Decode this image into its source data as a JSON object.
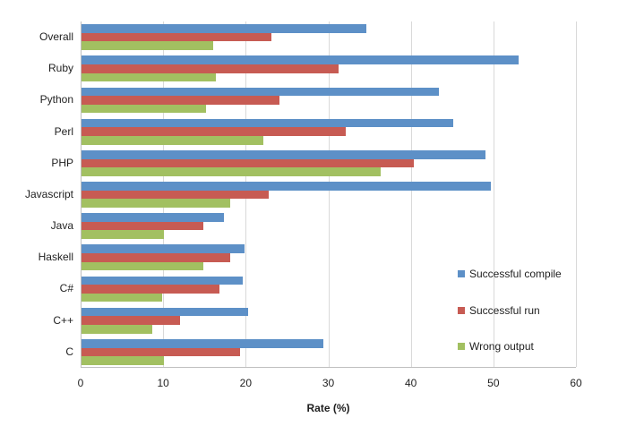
{
  "chart_data": {
    "type": "bar",
    "orientation": "horizontal",
    "title": "",
    "xlabel": "Rate (%)",
    "ylabel": "",
    "xlim": [
      0,
      60
    ],
    "xticks": [
      0,
      10,
      20,
      30,
      40,
      50,
      60
    ],
    "grid": true,
    "legend_position": "inside-right",
    "categories": [
      "Overall",
      "Ruby",
      "Python",
      "Perl",
      "PHP",
      "Javascript",
      "Java",
      "Haskell",
      "C#",
      "C++",
      "C"
    ],
    "series": [
      {
        "name": "Successful compile",
        "color": "#5d90c7",
        "values": [
          34.5,
          53.0,
          43.3,
          45.0,
          48.9,
          49.6,
          17.3,
          19.8,
          19.5,
          20.2,
          29.3
        ]
      },
      {
        "name": "Successful run",
        "color": "#c75b53",
        "values": [
          23.0,
          31.1,
          24.0,
          32.0,
          40.3,
          22.7,
          14.8,
          18.0,
          16.7,
          11.9,
          19.2
        ]
      },
      {
        "name": "Wrong output",
        "color": "#a2c061",
        "values": [
          16.0,
          16.3,
          15.1,
          22.0,
          36.2,
          18.0,
          10.0,
          14.8,
          9.8,
          8.6,
          10.0
        ]
      }
    ]
  },
  "style": {
    "gridline_color": "#d9d9d9",
    "axis_color": "#bfbfbf",
    "text_color": "#1f1f1f",
    "background": "#ffffff"
  },
  "legend_items": [
    {
      "label": "Successful compile"
    },
    {
      "label": "Successful run"
    },
    {
      "label": "Wrong output"
    }
  ]
}
